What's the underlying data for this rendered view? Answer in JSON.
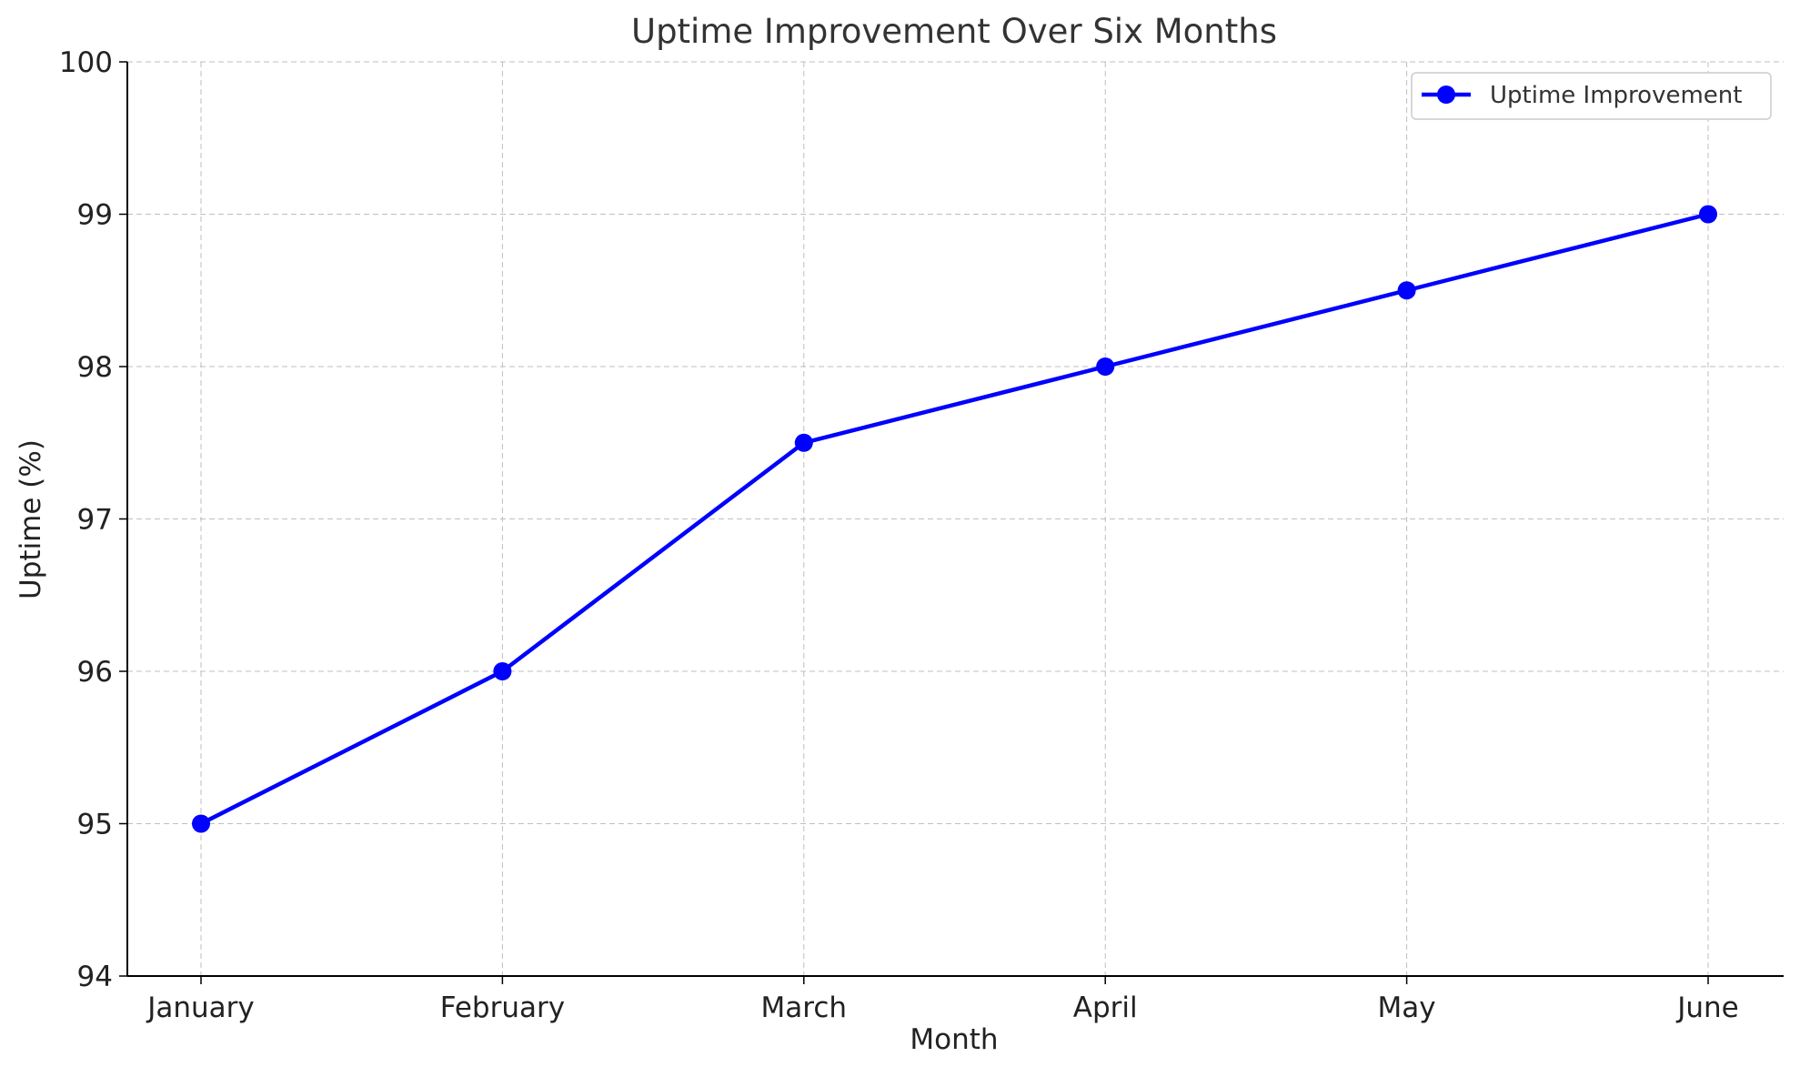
{
  "chart_data": {
    "type": "line",
    "title": "Uptime Improvement Over Six Months",
    "xlabel": "Month",
    "ylabel": "Uptime (%)",
    "categories": [
      "January",
      "February",
      "March",
      "April",
      "May",
      "June"
    ],
    "series": [
      {
        "name": "Uptime Improvement",
        "values": [
          95,
          96,
          97.5,
          98,
          98.5,
          99
        ],
        "color": "#0000ff",
        "marker": "circle"
      }
    ],
    "ylim": [
      94,
      100
    ],
    "yticks": [
      94,
      95,
      96,
      97,
      98,
      99,
      100
    ],
    "grid": true,
    "legend_position": "top-right"
  }
}
